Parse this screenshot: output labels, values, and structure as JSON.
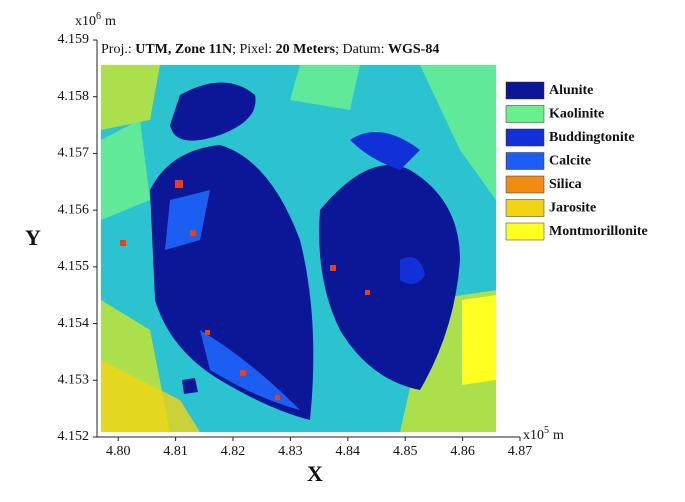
{
  "chart_data": {
    "type": "map",
    "subtitle": [
      {
        "text": "Proj.: ",
        "bold": false
      },
      {
        "text": "UTM, Zone 11N",
        "bold": true
      },
      {
        "text": "; Pixel: ",
        "bold": false
      },
      {
        "text": "20 Meters",
        "bold": true
      },
      {
        "text": "; Datum: ",
        "bold": false
      },
      {
        "text": "WGS-84",
        "bold": true
      }
    ],
    "xlabel": "X",
    "ylabel": "Y",
    "x_multiplier": {
      "base": "x10",
      "exp": "5",
      "unit": "m"
    },
    "y_multiplier": {
      "base": "x10",
      "exp": "6",
      "unit": "m"
    },
    "xlim": [
      4.797,
      4.87
    ],
    "ylim": [
      4.152,
      4.159
    ],
    "xticks": [
      {
        "value": 4.8,
        "label": "4.80"
      },
      4.81,
      4.82,
      4.83,
      4.84,
      4.85,
      4.86,
      {
        "value": 4.87,
        "label": "4.87"
      }
    ],
    "yticks": [
      4.152,
      4.153,
      4.154,
      4.155,
      4.156,
      4.157,
      4.158,
      4.159
    ],
    "legend": [
      {
        "name": "Alunite",
        "color": "#0b1796"
      },
      {
        "name": "Kaolinite",
        "color": "#68f08e"
      },
      {
        "name": "Buddingtonite",
        "color": "#1230d8"
      },
      {
        "name": "Calcite",
        "color": "#1c5ef2"
      },
      {
        "name": "Silica",
        "color": "#f08c12"
      },
      {
        "name": "Jarosite",
        "color": "#f2d414"
      },
      {
        "name": "Montmorillonite",
        "color": "#ffff22"
      }
    ]
  }
}
